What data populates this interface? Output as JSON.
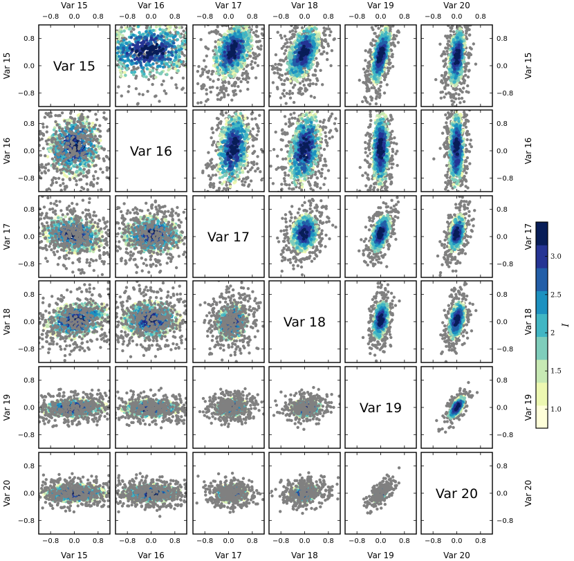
{
  "chart_data": {
    "type": "scatter-matrix",
    "variables": [
      "Var 15",
      "Var 16",
      "Var 17",
      "Var 18",
      "Var 19",
      "Var 20"
    ],
    "axis_range": [
      -1.2,
      1.2
    ],
    "tick_values": [
      -0.8,
      0.0,
      0.8
    ],
    "tick_labels": [
      "−0.8",
      "0.0",
      "0.8"
    ],
    "background_point_color": "#808080",
    "colorbar": {
      "label": "I",
      "range": [
        0.75,
        3.45
      ],
      "ticks": [
        1.0,
        1.5,
        2.0,
        2.5,
        3.0
      ],
      "tick_labels": [
        "1.0",
        "1.5",
        "2",
        "2.5",
        "3.0"
      ],
      "colors": [
        "#ffffd9",
        "#edf8b1",
        "#c7e9b4",
        "#7fcdbb",
        "#41b6c4",
        "#1d91c0",
        "#225ea8",
        "#253494",
        "#081d58"
      ]
    },
    "notes": "Upper triangle: colored (I) points lie on top; lower triangle: gray points lie on top of colored points. Point clouds summarized by generator parameters (center, spread, correlation) for each off-diagonal panel.",
    "panels": [
      {
        "row": 0,
        "col": 1,
        "cx": -0.1,
        "cy": 0.45,
        "sx": 0.9,
        "sy": 0.45,
        "r": 0.1,
        "n": 700,
        "layer": "color-top"
      },
      {
        "row": 0,
        "col": 2,
        "cx": 0.15,
        "cy": 0.45,
        "sx": 0.35,
        "sy": 0.45,
        "r": 0.4,
        "n": 650,
        "layer": "color-top"
      },
      {
        "row": 0,
        "col": 3,
        "cx": -0.05,
        "cy": 0.35,
        "sx": 0.3,
        "sy": 0.45,
        "r": 0.5,
        "n": 650,
        "layer": "color-top"
      },
      {
        "row": 0,
        "col": 4,
        "cx": 0.0,
        "cy": 0.3,
        "sx": 0.18,
        "sy": 0.45,
        "r": 0.6,
        "n": 600,
        "layer": "color-top"
      },
      {
        "row": 0,
        "col": 5,
        "cx": 0.0,
        "cy": 0.25,
        "sx": 0.15,
        "sy": 0.45,
        "r": 0.3,
        "n": 600,
        "layer": "color-top"
      },
      {
        "row": 1,
        "col": 2,
        "cx": 0.15,
        "cy": 0.05,
        "sx": 0.3,
        "sy": 0.6,
        "r": 0.3,
        "n": 650,
        "layer": "color-top"
      },
      {
        "row": 1,
        "col": 3,
        "cx": 0.0,
        "cy": 0.05,
        "sx": 0.3,
        "sy": 0.6,
        "r": 0.3,
        "n": 650,
        "layer": "color-top"
      },
      {
        "row": 1,
        "col": 4,
        "cx": 0.0,
        "cy": 0.05,
        "sx": 0.16,
        "sy": 0.6,
        "r": 0.1,
        "n": 600,
        "layer": "color-top"
      },
      {
        "row": 1,
        "col": 5,
        "cx": 0.0,
        "cy": 0.05,
        "sx": 0.14,
        "sy": 0.6,
        "r": 0.1,
        "n": 600,
        "layer": "color-top"
      },
      {
        "row": 2,
        "col": 3,
        "cx": 0.0,
        "cy": 0.1,
        "sx": 0.25,
        "sy": 0.3,
        "r": 0.2,
        "n": 500,
        "layer": "color-top"
      },
      {
        "row": 2,
        "col": 4,
        "cx": 0.0,
        "cy": 0.1,
        "sx": 0.18,
        "sy": 0.3,
        "r": 0.5,
        "n": 450,
        "layer": "color-top"
      },
      {
        "row": 2,
        "col": 5,
        "cx": 0.0,
        "cy": 0.1,
        "sx": 0.15,
        "sy": 0.3,
        "r": 0.4,
        "n": 450,
        "layer": "color-top"
      },
      {
        "row": 3,
        "col": 4,
        "cx": 0.0,
        "cy": 0.05,
        "sx": 0.15,
        "sy": 0.3,
        "r": 0.3,
        "n": 450,
        "layer": "color-top"
      },
      {
        "row": 3,
        "col": 5,
        "cx": 0.0,
        "cy": 0.05,
        "sx": 0.15,
        "sy": 0.3,
        "r": 0.4,
        "n": 450,
        "layer": "color-top"
      },
      {
        "row": 4,
        "col": 5,
        "cx": 0.0,
        "cy": 0.0,
        "sx": 0.15,
        "sy": 0.18,
        "r": 0.7,
        "n": 300,
        "layer": "color-top"
      },
      {
        "row": 1,
        "col": 0,
        "cx": 0.0,
        "cy": 0.15,
        "sx": 0.5,
        "sy": 0.5,
        "r": 0.1,
        "n": 700,
        "layer": "gray-top"
      },
      {
        "row": 2,
        "col": 0,
        "cx": -0.05,
        "cy": 0.05,
        "sx": 0.55,
        "sy": 0.3,
        "r": -0.2,
        "n": 700,
        "layer": "gray-top"
      },
      {
        "row": 2,
        "col": 1,
        "cx": 0.05,
        "cy": 0.05,
        "sx": 0.55,
        "sy": 0.3,
        "r": 0.0,
        "n": 700,
        "layer": "gray-top"
      },
      {
        "row": 3,
        "col": 0,
        "cx": 0.1,
        "cy": 0.05,
        "sx": 0.6,
        "sy": 0.3,
        "r": 0.3,
        "n": 700,
        "layer": "gray-top"
      },
      {
        "row": 3,
        "col": 1,
        "cx": 0.0,
        "cy": 0.05,
        "sx": 0.55,
        "sy": 0.3,
        "r": 0.0,
        "n": 700,
        "layer": "gray-top"
      },
      {
        "row": 3,
        "col": 2,
        "cx": 0.1,
        "cy": 0.0,
        "sx": 0.3,
        "sy": 0.3,
        "r": 0.1,
        "n": 550,
        "layer": "gray-top"
      },
      {
        "row": 4,
        "col": 0,
        "cx": 0.0,
        "cy": -0.02,
        "sx": 0.6,
        "sy": 0.15,
        "r": 0.1,
        "n": 650,
        "layer": "gray-top"
      },
      {
        "row": 4,
        "col": 1,
        "cx": 0.0,
        "cy": -0.02,
        "sx": 0.55,
        "sy": 0.15,
        "r": 0.0,
        "n": 650,
        "layer": "gray-top"
      },
      {
        "row": 4,
        "col": 2,
        "cx": 0.1,
        "cy": 0.0,
        "sx": 0.3,
        "sy": 0.15,
        "r": 0.1,
        "n": 500,
        "layer": "gray-top"
      },
      {
        "row": 4,
        "col": 3,
        "cx": 0.05,
        "cy": -0.02,
        "sx": 0.28,
        "sy": 0.15,
        "r": 0.1,
        "n": 450,
        "layer": "gray-top"
      },
      {
        "row": 5,
        "col": 0,
        "cx": 0.0,
        "cy": 0.0,
        "sx": 0.6,
        "sy": 0.15,
        "r": 0.0,
        "n": 650,
        "layer": "gray-top"
      },
      {
        "row": 5,
        "col": 1,
        "cx": 0.0,
        "cy": 0.0,
        "sx": 0.55,
        "sy": 0.15,
        "r": 0.0,
        "n": 650,
        "layer": "gray-top"
      },
      {
        "row": 5,
        "col": 2,
        "cx": 0.1,
        "cy": 0.0,
        "sx": 0.3,
        "sy": 0.15,
        "r": 0.0,
        "n": 500,
        "layer": "gray-top"
      },
      {
        "row": 5,
        "col": 3,
        "cx": 0.0,
        "cy": 0.0,
        "sx": 0.28,
        "sy": 0.15,
        "r": 0.2,
        "n": 450,
        "layer": "gray-top"
      },
      {
        "row": 5,
        "col": 4,
        "cx": 0.0,
        "cy": 0.0,
        "sx": 0.15,
        "sy": 0.15,
        "r": 0.6,
        "n": 300,
        "layer": "gray-top"
      }
    ]
  }
}
